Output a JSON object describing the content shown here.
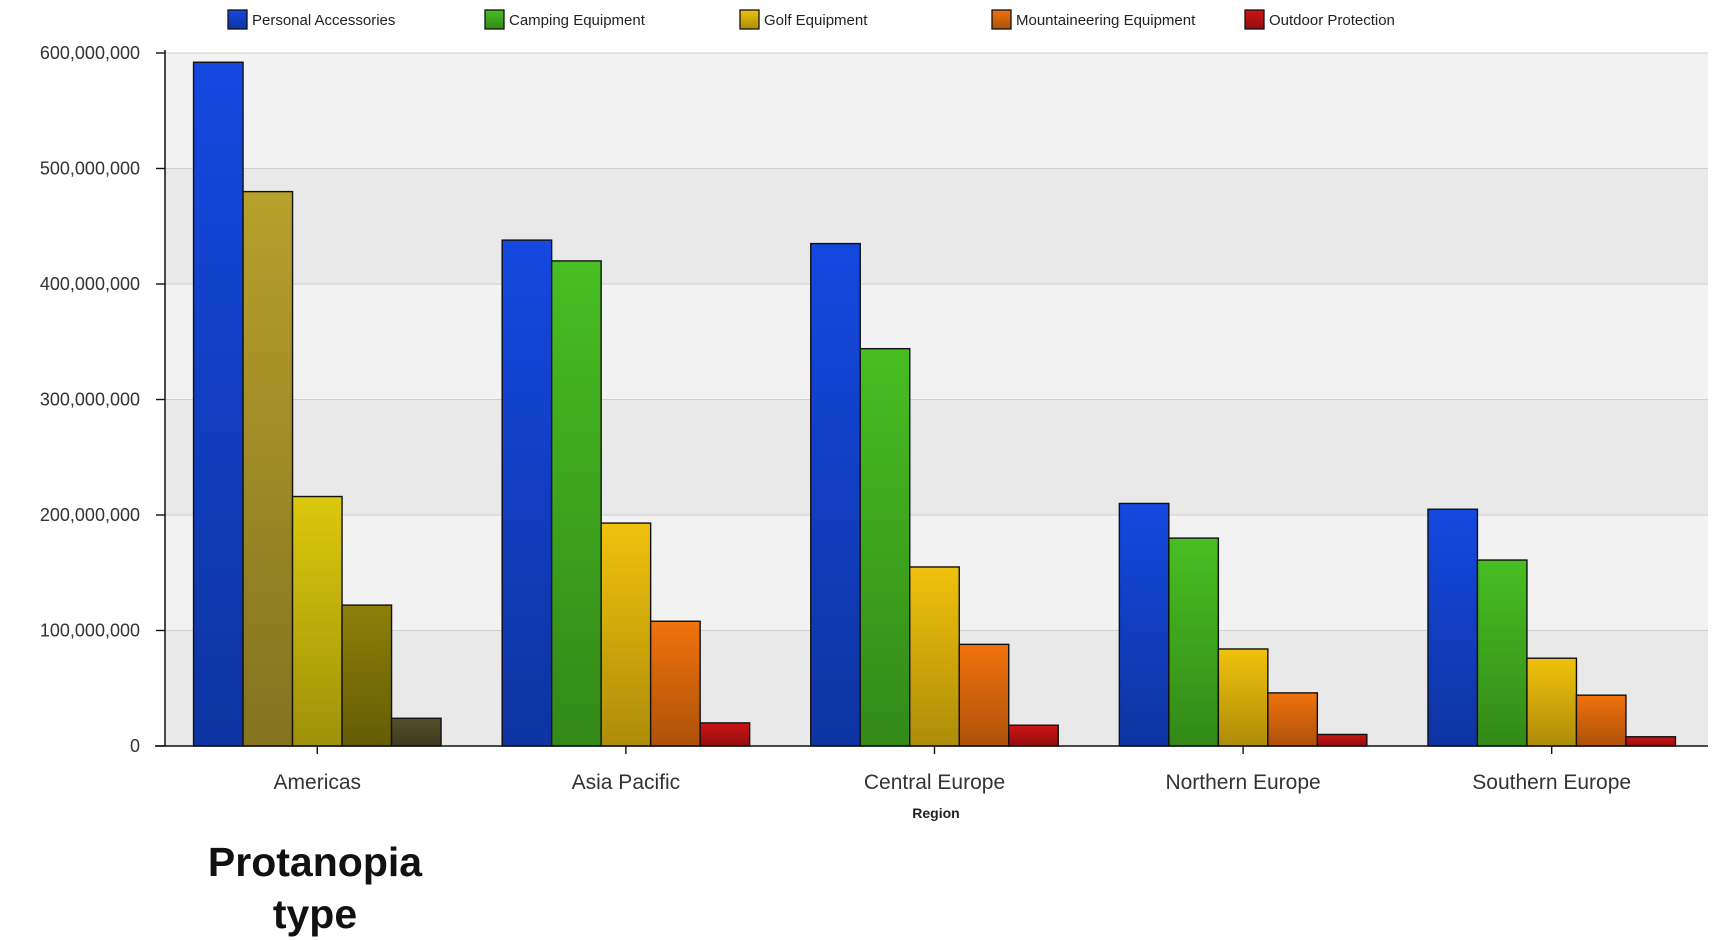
{
  "chart_data": {
    "type": "bar",
    "title": "",
    "xlabel": "Region",
    "ylabel": "",
    "ylim": [
      0,
      600000000
    ],
    "yticks": [
      "0",
      "100,000,000",
      "200,000,000",
      "300,000,000",
      "400,000,000",
      "500,000,000",
      "600,000,000"
    ],
    "grid": true,
    "legend_position": "top",
    "categories": [
      "Americas",
      "Asia Pacific",
      "Central Europe",
      "Northern Europe",
      "Southern Europe"
    ],
    "series": [
      {
        "name": "Personal Accessories",
        "values": [
          592000000,
          438000000,
          435000000,
          210000000,
          205000000
        ]
      },
      {
        "name": "Camping Equipment",
        "values": [
          480000000,
          420000000,
          344000000,
          180000000,
          161000000
        ]
      },
      {
        "name": "Golf Equipment",
        "values": [
          216000000,
          193000000,
          155000000,
          84000000,
          76000000
        ]
      },
      {
        "name": "Mountaineering Equipment",
        "values": [
          122000000,
          108000000,
          88000000,
          46000000,
          44000000
        ]
      },
      {
        "name": "Outdoor Protection",
        "values": [
          24000000,
          20000000,
          18000000,
          10000000,
          8000000
        ]
      }
    ]
  },
  "series_colors": [
    "#1448e0",
    "#47be22",
    "#f0c20c",
    "#f0720c",
    "#cc1414"
  ],
  "americas_colors": [
    "#1448e0",
    "#b8a02c",
    "#dcc90c",
    "#8c8008",
    "#55502a"
  ],
  "caption": {
    "line1": "Protanopia",
    "line2": "type"
  }
}
